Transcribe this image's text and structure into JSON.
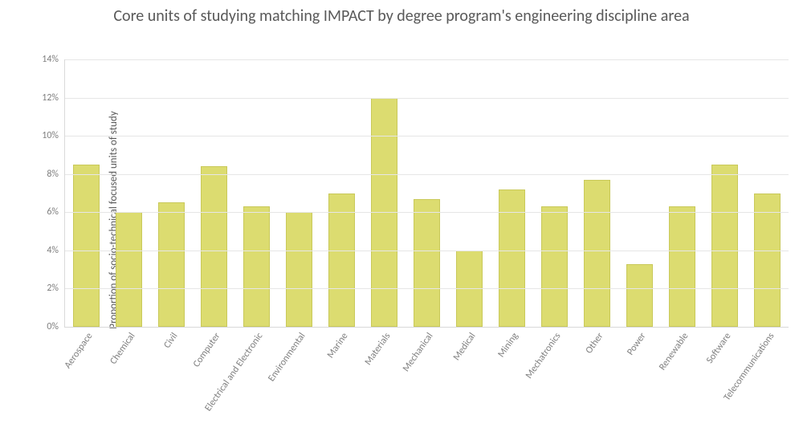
{
  "chart": {
    "type": "bar",
    "title": "Core units of studying matching IMPACT by degree program's engineering discipline area",
    "title_fontsize": 20,
    "ylabel": "Proportion of socio-technical focused units of study",
    "label_fontsize": 13,
    "ylim": [
      0,
      14
    ],
    "ytick_step": 2,
    "ytick_suffix": "%",
    "ytick_labels": [
      "0%",
      "2%",
      "4%",
      "6%",
      "8%",
      "10%",
      "12%",
      "14%"
    ],
    "bar_color": "#dcdc70",
    "bar_border_color": "#c9c95a",
    "background_color": "#ffffff",
    "grid_color": "#e6e6e6",
    "axis_color": "#d9d9d9",
    "text_color": "#595959",
    "tick_label_color": "#808080",
    "tick_fontsize": 12,
    "bar_width": 0.62,
    "x_label_rotation_deg": -55,
    "categories": [
      "Aerospace",
      "Chemical",
      "Civil",
      "Computer",
      "Electrical and Electronic",
      "Environmental",
      "Marine",
      "Materials",
      "Mechanical",
      "Medical",
      "Mining",
      "Mechatronics",
      "Other",
      "Power",
      "Renewable",
      "Software",
      "Telecommunications"
    ],
    "values": [
      8.5,
      6.0,
      6.5,
      8.4,
      6.3,
      6.0,
      7.0,
      12.0,
      6.7,
      4.0,
      7.2,
      6.3,
      7.7,
      3.3,
      6.3,
      8.5,
      7.0
    ]
  }
}
